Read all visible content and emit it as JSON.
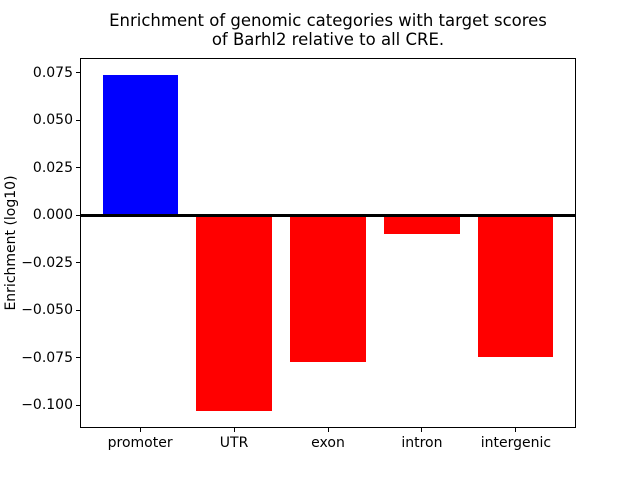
{
  "figure": {
    "background": "#ffffff",
    "frame_color": "#000000"
  },
  "chart_data": {
    "type": "bar",
    "title_lines": [
      "Enrichment of genomic categories with target scores",
      "of Barhl2 relative to all CRE."
    ],
    "title": "Enrichment of genomic categories with target scores of Barhl2 relative to all CRE.",
    "xlabel": "",
    "ylabel": "Enrichment (log10)",
    "categories": [
      "promoter",
      "UTR",
      "exon",
      "intron",
      "intergenic"
    ],
    "values": [
      0.0738,
      -0.1033,
      -0.0771,
      -0.0097,
      -0.0745
    ],
    "bar_colors": [
      "#0000ff",
      "#ff0000",
      "#ff0000",
      "#ff0000",
      "#ff0000"
    ],
    "positive_color": "#0000ff",
    "negative_color": "#ff0000",
    "bar_rel_width": 0.8,
    "xlim": [
      -0.64,
      4.64
    ],
    "ylim": [
      -0.1121,
      0.0827
    ],
    "yticks": [
      0.075,
      0.05,
      0.025,
      0.0,
      -0.025,
      -0.05,
      -0.075,
      -0.1
    ],
    "ytick_labels": [
      "0.075",
      "0.050",
      "0.025",
      "0.000",
      "−0.025",
      "−0.050",
      "−0.075",
      "−0.100"
    ],
    "grid": false,
    "legend": null,
    "zero_line": {
      "color": "#000000",
      "thickness_px": 3
    }
  }
}
